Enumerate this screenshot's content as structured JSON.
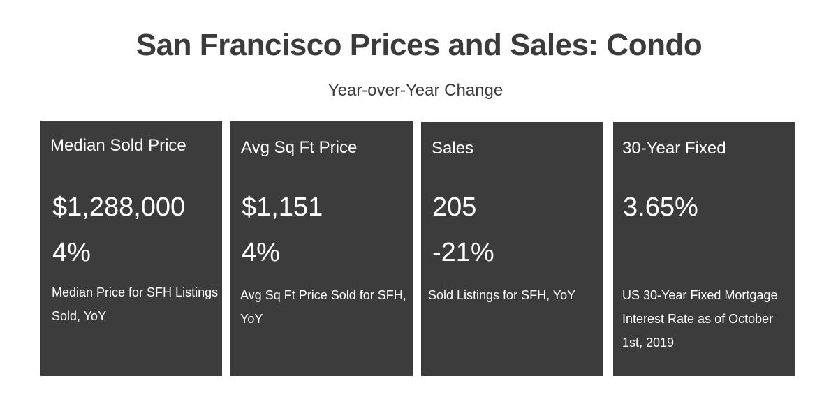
{
  "header": {
    "title": "San Francisco Prices and Sales: Condo",
    "subtitle": "Year-over-Year Change"
  },
  "cards": [
    {
      "label": "Median Sold Price",
      "value": "$1,288,000",
      "change": "4%",
      "description": "Median Price for SFH Listings Sold, YoY"
    },
    {
      "label": "Avg Sq Ft Price",
      "value": "$1,151",
      "change": "4%",
      "description": "Avg Sq Ft Price Sold for SFH, YoY"
    },
    {
      "label": "Sales",
      "value": "205",
      "change": "-21%",
      "description": "Sold Listings for SFH, YoY"
    },
    {
      "label": "30-Year Fixed",
      "value": "3.65%",
      "change": "",
      "description": "US 30-Year Fixed Mortgage Interest Rate as of October 1st, 2019"
    }
  ],
  "colors": {
    "card_background": "#3b3c3b",
    "card_text": "#ffffff",
    "heading_text": "#3b3b3b",
    "page_background": "#ffffff"
  }
}
